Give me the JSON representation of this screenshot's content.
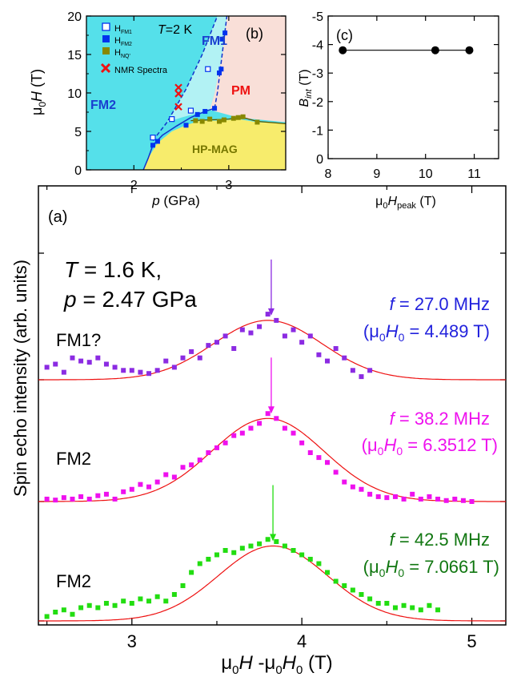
{
  "chart_data": [
    {
      "panel": "(a)",
      "type": "scatter",
      "xlabel": "μ0H -μ0H0 (T)",
      "ylabel": "Spin echo intensity (arb. units)",
      "xlim": [
        2.45,
        5.2
      ],
      "xticks": [
        "3",
        "4",
        "5"
      ],
      "annotation": {
        "T_line": "T = 1.6 K,",
        "p_line": "p = 2.47 GPa"
      },
      "series": [
        {
          "phase": "FM1?",
          "freq_label": "f = 27.0 MHz",
          "field_label": "(μ0H0 = 4.489 T)",
          "color": "#8b2be2",
          "arrow_x": 3.82,
          "baseline": 0.0,
          "fit": {
            "amplitude": 0.95,
            "center": 3.8,
            "sigma": 0.32
          },
          "x": [
            2.5,
            2.55,
            2.6,
            2.65,
            2.7,
            2.75,
            2.8,
            2.85,
            2.9,
            2.95,
            3.0,
            3.05,
            3.1,
            3.15,
            3.2,
            3.25,
            3.3,
            3.35,
            3.4,
            3.45,
            3.5,
            3.55,
            3.6,
            3.65,
            3.7,
            3.75,
            3.8,
            3.85,
            3.9,
            3.95,
            4.0,
            4.05,
            4.1,
            4.15,
            4.2,
            4.25,
            4.3,
            4.35,
            4.4
          ],
          "y": [
            0.2,
            0.25,
            0.12,
            0.35,
            0.3,
            0.28,
            0.35,
            0.25,
            0.2,
            0.15,
            0.15,
            0.12,
            0.1,
            0.15,
            0.3,
            0.2,
            0.35,
            0.45,
            0.35,
            0.55,
            0.6,
            0.7,
            0.5,
            0.8,
            0.75,
            0.85,
            1.05,
            0.95,
            0.7,
            0.8,
            0.6,
            0.7,
            0.4,
            0.3,
            0.5,
            0.35,
            0.15,
            0.05,
            0.15
          ]
        },
        {
          "phase": "FM2",
          "freq_label": "f = 38.2 MHz",
          "field_label": "(μ0H0 = 6.3512 T)",
          "color": "#ee11ee",
          "arrow_x": 3.82,
          "baseline": 0.0,
          "fit": {
            "amplitude": 1.7,
            "center": 3.8,
            "sigma": 0.33
          },
          "x": [
            2.5,
            2.55,
            2.6,
            2.65,
            2.7,
            2.75,
            2.8,
            2.85,
            2.9,
            2.95,
            3.0,
            3.05,
            3.1,
            3.15,
            3.2,
            3.25,
            3.3,
            3.35,
            3.4,
            3.45,
            3.5,
            3.55,
            3.6,
            3.65,
            3.7,
            3.75,
            3.8,
            3.85,
            3.9,
            3.95,
            4.0,
            4.05,
            4.1,
            4.15,
            4.2,
            4.25,
            4.3,
            4.35,
            4.4,
            4.45,
            4.5,
            4.55,
            4.6,
            4.65,
            4.7,
            4.75,
            4.8,
            4.85,
            4.9,
            4.95,
            5.0
          ],
          "y": [
            0.05,
            0.03,
            0.08,
            0.05,
            0.1,
            0.05,
            0.12,
            0.15,
            0.05,
            0.2,
            0.25,
            0.35,
            0.3,
            0.4,
            0.55,
            0.5,
            0.7,
            0.75,
            0.85,
            1.0,
            1.1,
            1.2,
            1.35,
            1.4,
            1.5,
            1.6,
            1.8,
            1.7,
            1.5,
            1.4,
            1.2,
            1.0,
            0.9,
            0.8,
            0.6,
            0.4,
            0.3,
            0.25,
            0.15,
            0.1,
            0.08,
            0.1,
            0.05,
            0.15,
            0.05,
            0.1,
            0.05,
            0.02,
            0.05,
            0.02,
            0.0
          ]
        },
        {
          "phase": "FM2",
          "freq_label": "f = 42.5 MHz",
          "field_label": "(μ0H0 = 7.0661 T)",
          "color": "#22dd11",
          "arrow_x": 3.83,
          "baseline": 0.0,
          "fit": {
            "amplitude": 1.7,
            "center": 3.83,
            "sigma": 0.32
          },
          "x": [
            2.5,
            2.55,
            2.6,
            2.65,
            2.7,
            2.75,
            2.8,
            2.85,
            2.9,
            2.95,
            3.0,
            3.05,
            3.1,
            3.15,
            3.2,
            3.25,
            3.3,
            3.35,
            3.4,
            3.45,
            3.5,
            3.55,
            3.6,
            3.65,
            3.7,
            3.75,
            3.8,
            3.85,
            3.9,
            3.95,
            4.0,
            4.05,
            4.1,
            4.15,
            4.2,
            4.25,
            4.3,
            4.35,
            4.4,
            4.45,
            4.5,
            4.55,
            4.6,
            4.65,
            4.7,
            4.75,
            4.8
          ],
          "y": [
            0.1,
            0.2,
            0.25,
            0.15,
            0.3,
            0.35,
            0.3,
            0.4,
            0.35,
            0.45,
            0.4,
            0.5,
            0.45,
            0.55,
            0.45,
            0.6,
            0.8,
            1.1,
            1.3,
            1.4,
            1.5,
            1.6,
            1.55,
            1.65,
            1.7,
            1.75,
            1.85,
            1.8,
            1.7,
            1.6,
            1.5,
            1.4,
            1.3,
            1.1,
            0.9,
            0.8,
            0.7,
            0.6,
            0.5,
            0.4,
            0.4,
            0.3,
            0.35,
            0.3,
            0.25,
            0.35,
            0.25
          ]
        }
      ]
    },
    {
      "panel": "(b)",
      "type": "scatter",
      "xlabel": "p (GPa)",
      "ylabel": "μ0H (T)",
      "xlim": [
        1.5,
        3.6
      ],
      "ylim": [
        0,
        20
      ],
      "xticks": [
        "2",
        "3"
      ],
      "yticks": [
        "0",
        "5",
        "10",
        "15",
        "20"
      ],
      "temperature_label": "T=2 K",
      "regions": [
        "FM1",
        "FM2",
        "PM",
        "HP-MAG"
      ],
      "region_colors": {
        "FM2": "#55e0ea",
        "FM1": "#b2f2f4",
        "PM": "#f9dfd8",
        "HP-MAG": "#f7ec6c"
      },
      "legend": [
        "H_FM1",
        "H_FM2",
        "H_NQ'",
        "NMR Spectra"
      ],
      "series": [
        {
          "name": "H_FM1",
          "marker": "open-square",
          "color": "#0033ee",
          "points": [
            [
              2.2,
              4.2
            ],
            [
              2.4,
              6.6
            ],
            [
              2.6,
              7.7
            ],
            [
              2.78,
              13.1
            ]
          ]
        },
        {
          "name": "H_FM2",
          "marker": "filled-square",
          "color": "#0033ee",
          "points": [
            [
              2.2,
              3.2
            ],
            [
              2.25,
              3.7
            ],
            [
              2.55,
              5.8
            ],
            [
              2.67,
              7.2
            ],
            [
              2.75,
              7.6
            ],
            [
              2.85,
              8.0
            ],
            [
              2.9,
              12.6
            ],
            [
              2.92,
              13.1
            ],
            [
              2.93,
              17.0
            ],
            [
              2.96,
              17.8
            ]
          ]
        },
        {
          "name": "H_NQ'",
          "marker": "filled-square",
          "color": "#888800",
          "points": [
            [
              2.65,
              6.4
            ],
            [
              2.72,
              6.3
            ],
            [
              2.8,
              6.6
            ],
            [
              2.9,
              6.3
            ],
            [
              2.95,
              6.5
            ],
            [
              3.05,
              6.7
            ],
            [
              3.1,
              6.8
            ],
            [
              3.15,
              6.9
            ],
            [
              3.3,
              6.2
            ]
          ]
        },
        {
          "name": "NMR Spectra",
          "marker": "x",
          "color": "#ee1111",
          "points": [
            [
              2.47,
              10.7
            ],
            [
              2.47,
              9.9
            ],
            [
              2.47,
              8.2
            ]
          ]
        }
      ]
    },
    {
      "panel": "(c)",
      "type": "line",
      "xlabel": "μ0Hpeak (T)",
      "ylabel": "Bint (T)",
      "xlim": [
        8,
        11.5
      ],
      "ylim": [
        0,
        -5
      ],
      "xticks": [
        "8",
        "9",
        "10",
        "11"
      ],
      "yticks": [
        "0",
        "-1",
        "-2",
        "-3",
        "-4",
        "-5"
      ],
      "x": [
        8.3,
        10.2,
        10.9
      ],
      "y": [
        -3.8,
        -3.8,
        -3.8
      ]
    }
  ]
}
